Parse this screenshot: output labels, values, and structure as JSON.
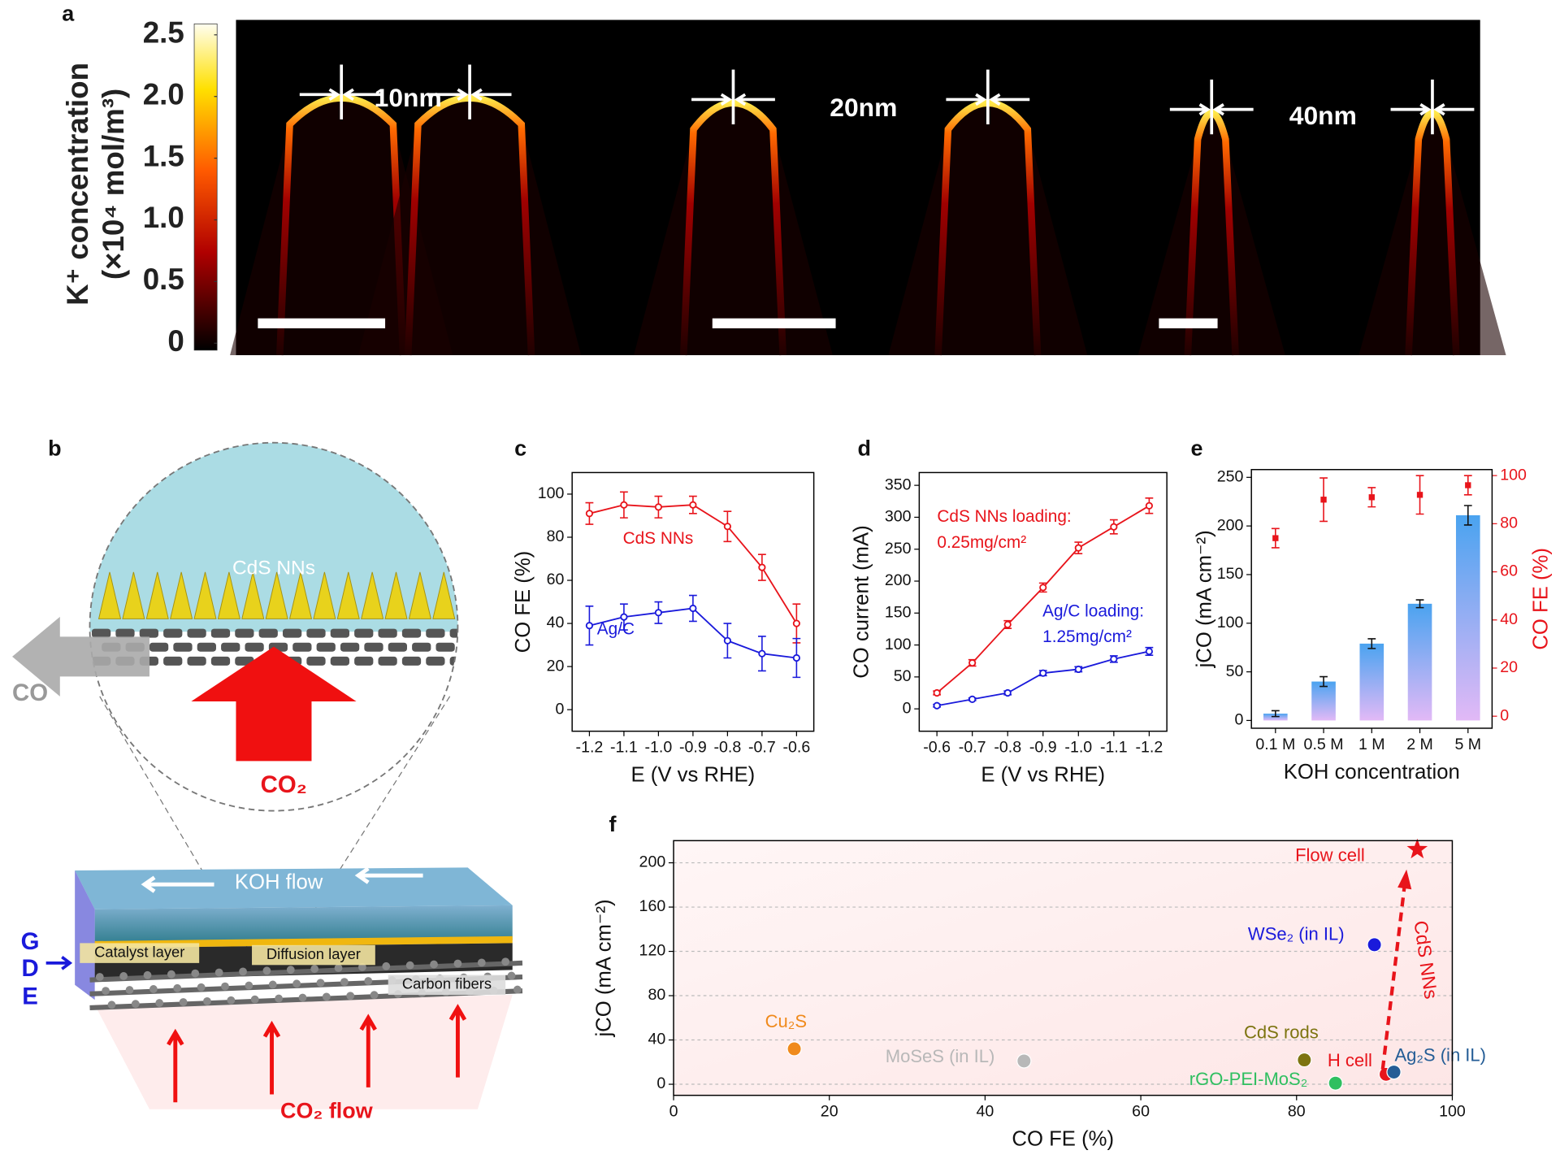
{
  "panel_a": {
    "label": "a",
    "colorbar": {
      "title": "K⁺ concentration",
      "unit": "(×10⁴ mol/m³)",
      "lim": [
        0,
        2.5
      ],
      "ticks": [
        0,
        0.5,
        {
          "value": 1,
          "label": "1.0"
        },
        1.5,
        {
          "value": 2,
          "label": "2.0"
        },
        2.5
      ]
    },
    "images": [
      {
        "label": "10nm"
      },
      {
        "label": "20nm"
      },
      {
        "label": "40nm"
      }
    ]
  },
  "panel_b": {
    "label": "b",
    "zoom": {
      "catalyst": "CdS NNs",
      "product": "CO",
      "reactant": "CO₂"
    },
    "device": {
      "flow": "KOH flow",
      "layers": [
        "Catalyst layer",
        "Diffusion layer",
        "Carbon fibers"
      ],
      "gde": [
        "G",
        "D",
        "E"
      ],
      "feed": "CO₂ flow"
    }
  },
  "chart_data": [
    {
      "panel": "c",
      "type": "line",
      "xlabel": "E (V vs RHE)",
      "ylabel": "CO FE (%)",
      "x": [
        -1.2,
        -1.1,
        -1,
        -0.9,
        -0.8,
        -0.7,
        -0.6
      ],
      "xlim": [
        -1.25,
        -0.55
      ],
      "xticks": [
        -1.2,
        -1.1,
        {
          "value": -1,
          "label": "-1.0"
        },
        -0.9,
        -0.8,
        -0.7,
        -0.6
      ],
      "ylim": [
        -10,
        110
      ],
      "yticks": [
        0,
        20,
        40,
        60,
        80,
        100
      ],
      "series": [
        {
          "name": "CdS NNs",
          "color": "#e8141b",
          "values": [
            91,
            95,
            94,
            95,
            85,
            66,
            40
          ],
          "errors": [
            5,
            6,
            5,
            4,
            7,
            6,
            9
          ]
        },
        {
          "name": "Ag/C",
          "color": "#1a1adb",
          "values": [
            39,
            43,
            45,
            47,
            32,
            26,
            24
          ],
          "errors": [
            9,
            6,
            5,
            6,
            8,
            8,
            9
          ]
        }
      ]
    },
    {
      "panel": "d",
      "type": "line",
      "xlabel": "E (V vs RHE)",
      "ylabel": "CO current (mA)",
      "x": [
        -0.6,
        -0.7,
        -0.8,
        -0.9,
        -1,
        -1.1,
        -1.2
      ],
      "xlim": [
        -0.55,
        -1.25
      ],
      "xticks": [
        -0.6,
        -0.7,
        -0.8,
        -0.9,
        {
          "value": -1,
          "label": "-1.0"
        },
        -1.1,
        -1.2
      ],
      "ylim": [
        -35,
        370
      ],
      "yticks": [
        0,
        50,
        100,
        150,
        200,
        250,
        300,
        350
      ],
      "series": [
        {
          "name": "CdS NNs loading:",
          "note": "0.25mg/cm²",
          "color": "#e8141b",
          "values": [
            25,
            72,
            132,
            190,
            252,
            285,
            318
          ],
          "errors": [
            3,
            5,
            6,
            7,
            9,
            11,
            12
          ]
        },
        {
          "name": "Ag/C loading:",
          "note": "1.25mg/cm²",
          "color": "#1a1adb",
          "values": [
            5,
            15,
            25,
            56,
            62,
            78,
            90
          ],
          "errors": [
            2,
            2,
            3,
            4,
            4,
            5,
            6
          ]
        }
      ]
    },
    {
      "panel": "e",
      "type": "bar",
      "xlabel": "KOH concentration",
      "ylabel": "jCO (mA cm⁻²)",
      "y2label": "CO FE (%)",
      "categories": [
        "0.1 M",
        "0.5 M",
        "1 M",
        "2 M",
        "5 M"
      ],
      "ylim": [
        -8,
        258
      ],
      "yticks": [
        0,
        50,
        100,
        150,
        200,
        250
      ],
      "y2lim": [
        -5,
        102.5
      ],
      "y2ticks": [
        0,
        20,
        40,
        60,
        80,
        100
      ],
      "series": [
        {
          "color": "#4aa3f0",
          "values": [
            7,
            40,
            79,
            120,
            211
          ],
          "errors": [
            3,
            5,
            5,
            4,
            10
          ]
        },
        {
          "axis": "y2",
          "color": "#e8141b",
          "values": [
            74,
            90,
            91,
            92,
            96
          ],
          "errors": [
            4,
            9,
            4,
            8,
            4
          ]
        }
      ]
    },
    {
      "panel": "f",
      "type": "scatter",
      "xlabel": "CO FE (%)",
      "ylabel": "jCO (mA cm⁻²)",
      "xlim": [
        0,
        100
      ],
      "xticks": [
        0,
        20,
        40,
        60,
        80,
        100
      ],
      "ylim": [
        -10,
        220
      ],
      "yticks": [
        0,
        40,
        80,
        120,
        160,
        200
      ],
      "grid": true,
      "annotation": "CdS NNs",
      "series": [
        {
          "name": "Cu₂S",
          "color": "#f08a1c",
          "x": [
            15.5
          ],
          "values": [
            32
          ]
        },
        {
          "name": "MoSeS (in IL)",
          "color": "#b8b8b8",
          "x": [
            45
          ],
          "values": [
            21
          ]
        },
        {
          "name": "CdS rods",
          "color": "#7d7410",
          "x": [
            81
          ],
          "values": [
            22
          ]
        },
        {
          "name": "rGO-PEI-MoS₂",
          "color": "#2fbf60",
          "x": [
            85
          ],
          "values": [
            1
          ]
        },
        {
          "name": "H cell",
          "color": "#e8141b",
          "x": [
            91.5
          ],
          "values": [
            9
          ]
        },
        {
          "name": "Ag₂S (in IL)",
          "color": "#245d96",
          "x": [
            92.5
          ],
          "values": [
            11
          ]
        },
        {
          "name": "WSe₂ (in IL)",
          "color": "#1a1adb",
          "x": [
            90
          ],
          "values": [
            126
          ]
        },
        {
          "name": "Flow cell",
          "color": "#e8141b",
          "marker": "star",
          "x": [
            95.5
          ],
          "values": [
            212
          ]
        }
      ]
    }
  ]
}
